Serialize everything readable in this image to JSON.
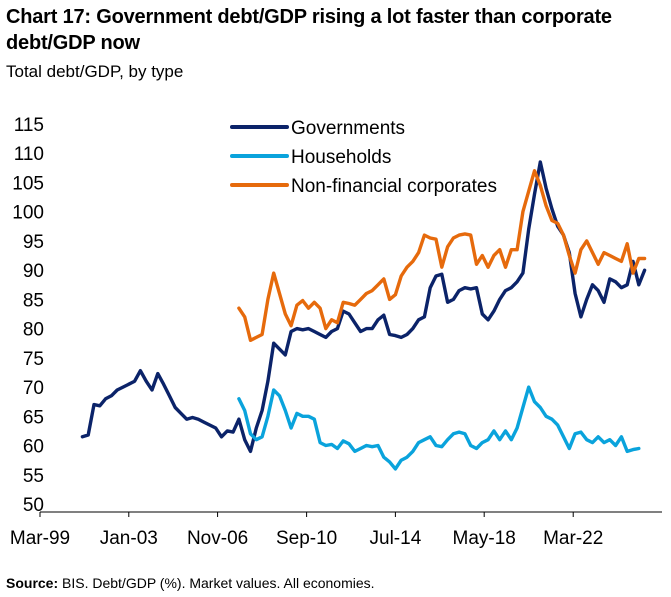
{
  "chart_data": {
    "type": "line",
    "title": "Chart 17: Government debt/GDP rising a lot faster than corporate debt/GDP now",
    "subtitle": "Total debt/GDP, by type",
    "footer": {
      "source_label": "Source:",
      "source_text": " BIS. Debt/GDP (%). Market values. All economies."
    },
    "xlabel": "",
    "ylabel": "",
    "x_tick_labels": [
      "Mar-99",
      "Jan-03",
      "Nov-06",
      "Sep-10",
      "Jul-14",
      "May-18",
      "Mar-22"
    ],
    "x_tick_values": [
      1999.17,
      2003.0,
      2006.83,
      2010.67,
      2014.5,
      2018.33,
      2022.17
    ],
    "xlim": [
      1999.17,
      2026.0
    ],
    "ylim": [
      50,
      115
    ],
    "y_ticks": [
      50,
      55,
      60,
      65,
      70,
      75,
      80,
      85,
      90,
      95,
      100,
      105,
      110,
      115
    ],
    "legend_position": "top-center",
    "series": [
      {
        "name": "Governments",
        "color": "#0b2369",
        "points": [
          [
            2001.0,
            61.5
          ],
          [
            2001.25,
            61.8
          ],
          [
            2001.5,
            67
          ],
          [
            2001.75,
            66.8
          ],
          [
            2002.0,
            68
          ],
          [
            2002.25,
            68.5
          ],
          [
            2002.5,
            69.5
          ],
          [
            2002.75,
            70
          ],
          [
            2003.0,
            70.5
          ],
          [
            2003.25,
            71
          ],
          [
            2003.5,
            72.8
          ],
          [
            2003.75,
            71
          ],
          [
            2004.0,
            69.5
          ],
          [
            2004.25,
            72.3
          ],
          [
            2004.5,
            70.5
          ],
          [
            2004.75,
            68.5
          ],
          [
            2005.0,
            66.5
          ],
          [
            2005.25,
            65.5
          ],
          [
            2005.5,
            64.5
          ],
          [
            2005.75,
            64.8
          ],
          [
            2006.0,
            64.5
          ],
          [
            2006.25,
            64
          ],
          [
            2006.5,
            63.5
          ],
          [
            2006.75,
            63
          ],
          [
            2007.0,
            61.5
          ],
          [
            2007.25,
            62.5
          ],
          [
            2007.5,
            62.3
          ],
          [
            2007.75,
            64.5
          ],
          [
            2008.0,
            61
          ],
          [
            2008.25,
            59
          ],
          [
            2008.5,
            63
          ],
          [
            2008.75,
            66
          ],
          [
            2009.0,
            71
          ],
          [
            2009.25,
            77.5
          ],
          [
            2009.5,
            76.5
          ],
          [
            2009.75,
            75.5
          ],
          [
            2010.0,
            79.5
          ],
          [
            2010.25,
            80
          ],
          [
            2010.5,
            79.8
          ],
          [
            2010.75,
            80
          ],
          [
            2011.0,
            79.5
          ],
          [
            2011.25,
            79
          ],
          [
            2011.5,
            78.5
          ],
          [
            2011.75,
            79.5
          ],
          [
            2012.0,
            80
          ],
          [
            2012.25,
            83
          ],
          [
            2012.5,
            82.5
          ],
          [
            2012.75,
            81
          ],
          [
            2013.0,
            79.5
          ],
          [
            2013.25,
            80
          ],
          [
            2013.5,
            80
          ],
          [
            2013.75,
            81.5
          ],
          [
            2014.0,
            82.3
          ],
          [
            2014.25,
            79
          ],
          [
            2014.5,
            78.8
          ],
          [
            2014.75,
            78.5
          ],
          [
            2015.0,
            79
          ],
          [
            2015.25,
            80
          ],
          [
            2015.5,
            81.5
          ],
          [
            2015.75,
            82
          ],
          [
            2016.0,
            87
          ],
          [
            2016.25,
            89
          ],
          [
            2016.5,
            89.3
          ],
          [
            2016.75,
            84.5
          ],
          [
            2017.0,
            85
          ],
          [
            2017.25,
            86.5
          ],
          [
            2017.5,
            87
          ],
          [
            2017.75,
            86.8
          ],
          [
            2018.0,
            87
          ],
          [
            2018.25,
            82.5
          ],
          [
            2018.5,
            81.5
          ],
          [
            2018.75,
            83
          ],
          [
            2019.0,
            85
          ],
          [
            2019.25,
            86.5
          ],
          [
            2019.5,
            87
          ],
          [
            2019.75,
            88
          ],
          [
            2020.0,
            89.5
          ],
          [
            2020.25,
            97
          ],
          [
            2020.5,
            103
          ],
          [
            2020.75,
            108.5
          ],
          [
            2021.0,
            104
          ],
          [
            2021.25,
            100.5
          ],
          [
            2021.5,
            97.5
          ],
          [
            2021.75,
            96
          ],
          [
            2022.0,
            93
          ],
          [
            2022.25,
            86
          ],
          [
            2022.5,
            82
          ],
          [
            2022.75,
            85
          ],
          [
            2023.0,
            87.5
          ],
          [
            2023.25,
            86.5
          ],
          [
            2023.5,
            84.5
          ],
          [
            2023.75,
            88.5
          ],
          [
            2024.0,
            88
          ],
          [
            2024.25,
            87
          ],
          [
            2024.5,
            87.5
          ],
          [
            2024.75,
            91.5
          ],
          [
            2025.0,
            87.5
          ],
          [
            2025.25,
            90
          ]
        ]
      },
      {
        "name": "Households",
        "color": "#0aa3dc",
        "points": [
          [
            2007.75,
            68
          ],
          [
            2008.0,
            66
          ],
          [
            2008.25,
            62
          ],
          [
            2008.5,
            61
          ],
          [
            2008.75,
            61.5
          ],
          [
            2009.0,
            65
          ],
          [
            2009.25,
            69.5
          ],
          [
            2009.5,
            68.5
          ],
          [
            2009.75,
            66
          ],
          [
            2010.0,
            63
          ],
          [
            2010.25,
            65.5
          ],
          [
            2010.5,
            65
          ],
          [
            2010.75,
            65
          ],
          [
            2011.0,
            64.5
          ],
          [
            2011.25,
            60.5
          ],
          [
            2011.5,
            60
          ],
          [
            2011.75,
            60.2
          ],
          [
            2012.0,
            59.5
          ],
          [
            2012.25,
            60.8
          ],
          [
            2012.5,
            60.3
          ],
          [
            2012.75,
            59
          ],
          [
            2013.0,
            59.5
          ],
          [
            2013.25,
            60
          ],
          [
            2013.5,
            59.8
          ],
          [
            2013.75,
            60
          ],
          [
            2014.0,
            58
          ],
          [
            2014.25,
            57.2
          ],
          [
            2014.5,
            56
          ],
          [
            2014.75,
            57.5
          ],
          [
            2015.0,
            58
          ],
          [
            2015.25,
            59
          ],
          [
            2015.5,
            60.5
          ],
          [
            2015.75,
            61
          ],
          [
            2016.0,
            61.5
          ],
          [
            2016.25,
            60
          ],
          [
            2016.5,
            59.8
          ],
          [
            2016.75,
            61
          ],
          [
            2017.0,
            62
          ],
          [
            2017.25,
            62.3
          ],
          [
            2017.5,
            62
          ],
          [
            2017.75,
            60
          ],
          [
            2018.0,
            59.5
          ],
          [
            2018.25,
            60.5
          ],
          [
            2018.5,
            61
          ],
          [
            2018.75,
            62.5
          ],
          [
            2019.0,
            61
          ],
          [
            2019.25,
            62.5
          ],
          [
            2019.5,
            61
          ],
          [
            2019.75,
            63
          ],
          [
            2020.0,
            66.5
          ],
          [
            2020.25,
            70
          ],
          [
            2020.5,
            67.5
          ],
          [
            2020.75,
            66.5
          ],
          [
            2021.0,
            65
          ],
          [
            2021.25,
            64.5
          ],
          [
            2021.5,
            63.5
          ],
          [
            2021.75,
            61.5
          ],
          [
            2022.0,
            59.5
          ],
          [
            2022.25,
            62
          ],
          [
            2022.5,
            62.3
          ],
          [
            2022.75,
            61
          ],
          [
            2023.0,
            60.5
          ],
          [
            2023.25,
            61.5
          ],
          [
            2023.5,
            60.5
          ],
          [
            2023.75,
            61
          ],
          [
            2024.0,
            60
          ],
          [
            2024.25,
            61.5
          ],
          [
            2024.5,
            59
          ],
          [
            2024.75,
            59.3
          ],
          [
            2025.0,
            59.5
          ]
        ]
      },
      {
        "name": "Non-financial corporates",
        "color": "#e66a0c",
        "points": [
          [
            2007.75,
            83.5
          ],
          [
            2008.0,
            82
          ],
          [
            2008.25,
            78
          ],
          [
            2008.5,
            78.5
          ],
          [
            2008.75,
            79
          ],
          [
            2009.0,
            85
          ],
          [
            2009.25,
            89.5
          ],
          [
            2009.5,
            86
          ],
          [
            2009.75,
            82.5
          ],
          [
            2010.0,
            80.5
          ],
          [
            2010.25,
            84
          ],
          [
            2010.5,
            84.8
          ],
          [
            2010.75,
            83.5
          ],
          [
            2011.0,
            84.5
          ],
          [
            2011.25,
            83.5
          ],
          [
            2011.5,
            80
          ],
          [
            2011.75,
            81.5
          ],
          [
            2012.0,
            81
          ],
          [
            2012.25,
            84.5
          ],
          [
            2012.5,
            84.3
          ],
          [
            2012.75,
            84
          ],
          [
            2013.0,
            85
          ],
          [
            2013.25,
            86
          ],
          [
            2013.5,
            86.5
          ],
          [
            2013.75,
            87.5
          ],
          [
            2014.0,
            88.5
          ],
          [
            2014.25,
            85
          ],
          [
            2014.5,
            85.8
          ],
          [
            2014.75,
            89
          ],
          [
            2015.0,
            90.5
          ],
          [
            2015.25,
            91.5
          ],
          [
            2015.5,
            93
          ],
          [
            2015.75,
            96
          ],
          [
            2016.0,
            95.5
          ],
          [
            2016.25,
            95.3
          ],
          [
            2016.5,
            90.5
          ],
          [
            2016.75,
            94
          ],
          [
            2017.0,
            95.5
          ],
          [
            2017.25,
            96
          ],
          [
            2017.5,
            96.2
          ],
          [
            2017.75,
            96
          ],
          [
            2018.0,
            91
          ],
          [
            2018.25,
            92.5
          ],
          [
            2018.5,
            90.5
          ],
          [
            2018.75,
            92.5
          ],
          [
            2019.0,
            93.5
          ],
          [
            2019.25,
            90.5
          ],
          [
            2019.5,
            93.5
          ],
          [
            2019.75,
            93.5
          ],
          [
            2020.0,
            100
          ],
          [
            2020.25,
            103.5
          ],
          [
            2020.5,
            107
          ],
          [
            2020.75,
            104.5
          ],
          [
            2021.0,
            101
          ],
          [
            2021.25,
            98.5
          ],
          [
            2021.5,
            98
          ],
          [
            2021.75,
            96
          ],
          [
            2022.0,
            92.5
          ],
          [
            2022.25,
            89.5
          ],
          [
            2022.5,
            93.5
          ],
          [
            2022.75,
            95
          ],
          [
            2023.0,
            93
          ],
          [
            2023.25,
            91
          ],
          [
            2023.5,
            93
          ],
          [
            2023.75,
            92.5
          ],
          [
            2024.0,
            92
          ],
          [
            2024.25,
            91.5
          ],
          [
            2024.5,
            94.5
          ],
          [
            2024.75,
            89.5
          ],
          [
            2025.0,
            92
          ],
          [
            2025.25,
            92
          ]
        ]
      }
    ]
  }
}
